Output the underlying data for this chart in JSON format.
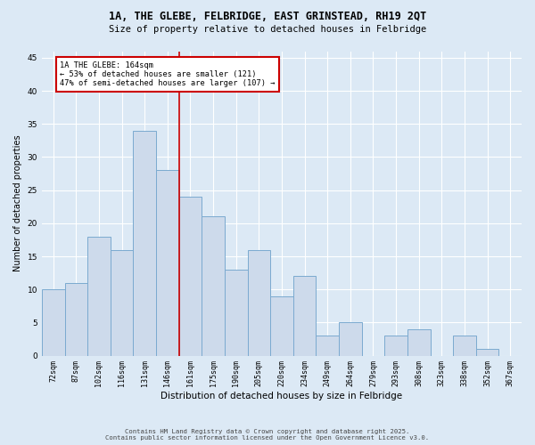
{
  "title1": "1A, THE GLEBE, FELBRIDGE, EAST GRINSTEAD, RH19 2QT",
  "title2": "Size of property relative to detached houses in Felbridge",
  "xlabel": "Distribution of detached houses by size in Felbridge",
  "ylabel": "Number of detached properties",
  "categories": [
    "72sqm",
    "87sqm",
    "102sqm",
    "116sqm",
    "131sqm",
    "146sqm",
    "161sqm",
    "175sqm",
    "190sqm",
    "205sqm",
    "220sqm",
    "234sqm",
    "249sqm",
    "264sqm",
    "279sqm",
    "293sqm",
    "308sqm",
    "323sqm",
    "338sqm",
    "352sqm",
    "367sqm"
  ],
  "values": [
    10,
    11,
    18,
    16,
    34,
    28,
    24,
    21,
    13,
    16,
    9,
    12,
    3,
    5,
    0,
    3,
    4,
    0,
    3,
    1,
    0
  ],
  "bar_color": "#cddaeb",
  "bar_edge_color": "#7baad0",
  "reference_line_index": 6,
  "annotation_title": "1A THE GLEBE: 164sqm",
  "annotation_line1": "← 53% of detached houses are smaller (121)",
  "annotation_line2": "47% of semi-detached houses are larger (107) →",
  "annotation_box_color": "#ffffff",
  "annotation_box_edge_color": "#cc0000",
  "ref_line_color": "#cc0000",
  "background_color": "#dce9f5",
  "plot_bg_color": "#dce9f5",
  "grid_color": "#ffffff",
  "footer1": "Contains HM Land Registry data © Crown copyright and database right 2025.",
  "footer2": "Contains public sector information licensed under the Open Government Licence v3.0.",
  "ylim": [
    0,
    46
  ],
  "yticks": [
    0,
    5,
    10,
    15,
    20,
    25,
    30,
    35,
    40,
    45
  ]
}
